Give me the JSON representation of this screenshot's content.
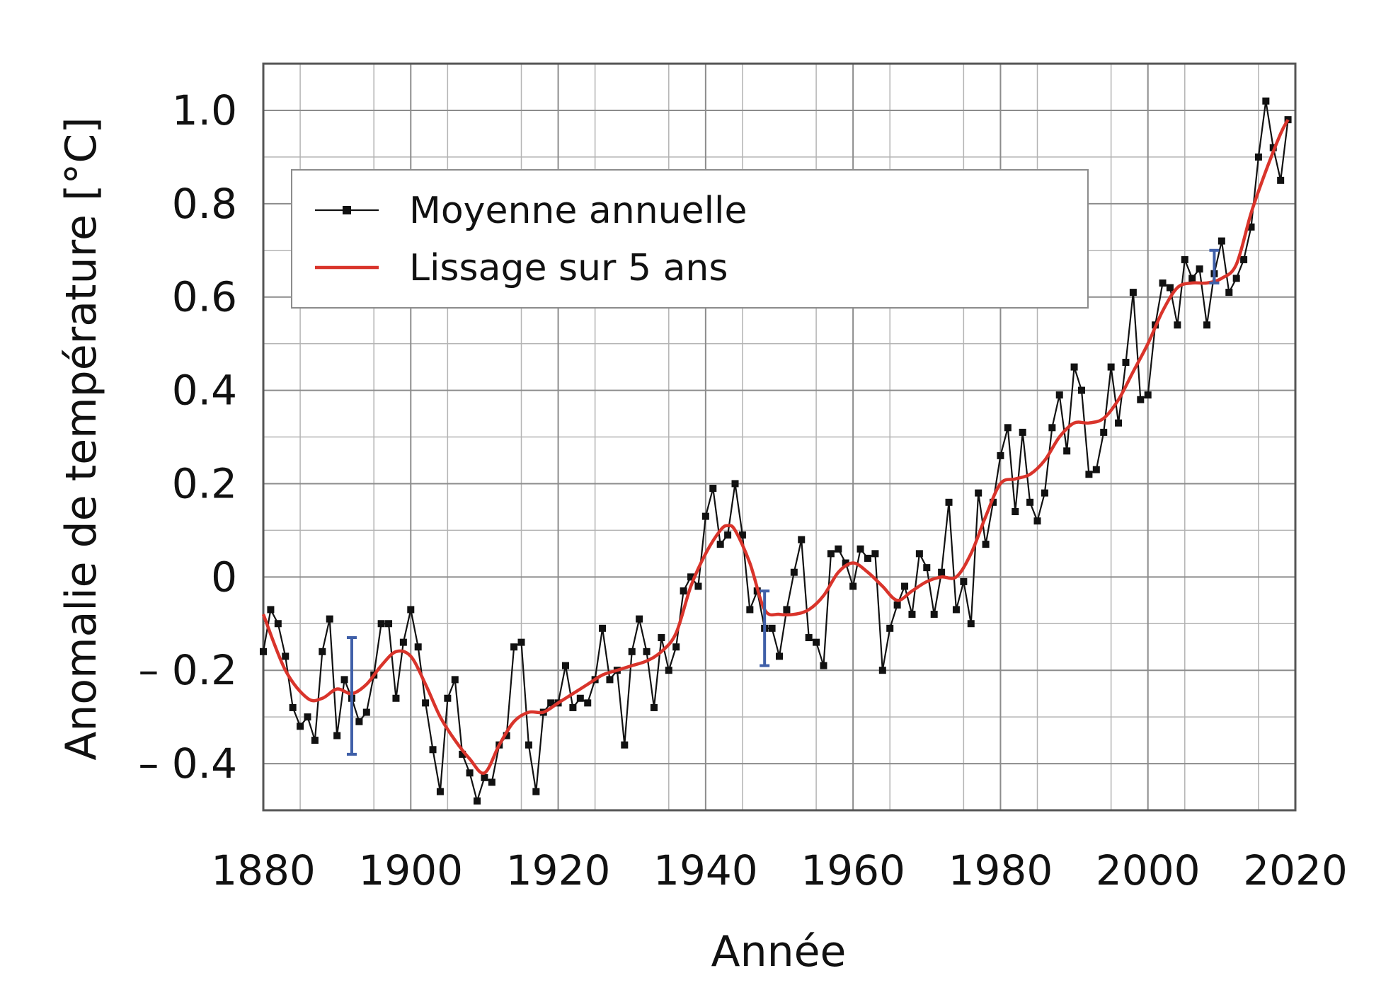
{
  "chart_data": {
    "type": "line",
    "title": "",
    "xlabel": "Année",
    "ylabel": "Anomalie de température [°C]",
    "xlim": [
      1880,
      2020
    ],
    "ylim": [
      -0.5,
      1.1
    ],
    "x_ticks": [
      1880,
      1900,
      1920,
      1940,
      1960,
      1980,
      2000,
      2020
    ],
    "x_tick_labels": [
      "1880",
      "1900",
      "1920",
      "1940",
      "1960",
      "1980",
      "2000",
      "2020"
    ],
    "y_ticks": [
      -0.4,
      -0.2,
      0,
      0.2,
      0.4,
      0.6,
      0.8,
      1.0
    ],
    "y_tick_labels": [
      "– 0.4",
      "– 0.2",
      "0",
      "0.2",
      "0.4",
      "0.6",
      "0.8",
      "1.0"
    ],
    "grid": true,
    "legend_position": "top-left",
    "legend": [
      "Moyenne annuelle",
      "Lissage sur 5 ans"
    ],
    "colors": {
      "annual": "#111111",
      "smooth": "#d9342b",
      "error_bar": "#3f5fa8",
      "grid": "#8c8c8c"
    },
    "series": [
      {
        "name": "Moyenne annuelle",
        "x": [
          1880,
          1881,
          1882,
          1883,
          1884,
          1885,
          1886,
          1887,
          1888,
          1889,
          1890,
          1891,
          1892,
          1893,
          1894,
          1895,
          1896,
          1897,
          1898,
          1899,
          1900,
          1901,
          1902,
          1903,
          1904,
          1905,
          1906,
          1907,
          1908,
          1909,
          1910,
          1911,
          1912,
          1913,
          1914,
          1915,
          1916,
          1917,
          1918,
          1919,
          1920,
          1921,
          1922,
          1923,
          1924,
          1925,
          1926,
          1927,
          1928,
          1929,
          1930,
          1931,
          1932,
          1933,
          1934,
          1935,
          1936,
          1937,
          1938,
          1939,
          1940,
          1941,
          1942,
          1943,
          1944,
          1945,
          1946,
          1947,
          1948,
          1949,
          1950,
          1951,
          1952,
          1953,
          1954,
          1955,
          1956,
          1957,
          1958,
          1959,
          1960,
          1961,
          1962,
          1963,
          1964,
          1965,
          1966,
          1967,
          1968,
          1969,
          1970,
          1971,
          1972,
          1973,
          1974,
          1975,
          1976,
          1977,
          1978,
          1979,
          1980,
          1981,
          1982,
          1983,
          1984,
          1985,
          1986,
          1987,
          1988,
          1989,
          1990,
          1991,
          1992,
          1993,
          1994,
          1995,
          1996,
          1997,
          1998,
          1999,
          2000,
          2001,
          2002,
          2003,
          2004,
          2005,
          2006,
          2007,
          2008,
          2009,
          2010,
          2011,
          2012,
          2013,
          2014,
          2015,
          2016,
          2017,
          2018,
          2019
        ],
        "y": [
          -0.16,
          -0.07,
          -0.1,
          -0.17,
          -0.28,
          -0.32,
          -0.3,
          -0.35,
          -0.16,
          -0.09,
          -0.34,
          -0.22,
          -0.26,
          -0.31,
          -0.29,
          -0.21,
          -0.1,
          -0.1,
          -0.26,
          -0.14,
          -0.07,
          -0.15,
          -0.27,
          -0.37,
          -0.46,
          -0.26,
          -0.22,
          -0.38,
          -0.42,
          -0.48,
          -0.43,
          -0.44,
          -0.36,
          -0.34,
          -0.15,
          -0.14,
          -0.36,
          -0.46,
          -0.29,
          -0.27,
          -0.27,
          -0.19,
          -0.28,
          -0.26,
          -0.27,
          -0.22,
          -0.11,
          -0.22,
          -0.2,
          -0.36,
          -0.16,
          -0.09,
          -0.16,
          -0.28,
          -0.13,
          -0.2,
          -0.15,
          -0.03,
          0.0,
          -0.02,
          0.13,
          0.19,
          0.07,
          0.09,
          0.2,
          0.09,
          -0.07,
          -0.03,
          -0.11,
          -0.11,
          -0.17,
          -0.07,
          0.01,
          0.08,
          -0.13,
          -0.14,
          -0.19,
          0.05,
          0.06,
          0.03,
          -0.02,
          0.06,
          0.04,
          0.05,
          -0.2,
          -0.11,
          -0.06,
          -0.02,
          -0.08,
          0.05,
          0.02,
          -0.08,
          0.01,
          0.16,
          -0.07,
          -0.01,
          -0.1,
          0.18,
          0.07,
          0.16,
          0.26,
          0.32,
          0.14,
          0.31,
          0.16,
          0.12,
          0.18,
          0.32,
          0.39,
          0.27,
          0.45,
          0.4,
          0.22,
          0.23,
          0.31,
          0.45,
          0.33,
          0.46,
          0.61,
          0.38,
          0.39,
          0.54,
          0.63,
          0.62,
          0.54,
          0.68,
          0.64,
          0.66,
          0.54,
          0.65,
          0.72,
          0.61,
          0.64,
          0.68,
          0.75,
          0.9,
          1.02,
          0.92,
          0.85,
          0.98
        ]
      },
      {
        "name": "Lissage sur 5 ans",
        "x": [
          1880,
          1883,
          1886,
          1888,
          1890,
          1892,
          1894,
          1896,
          1898,
          1900,
          1902,
          1904,
          1906,
          1908,
          1910,
          1912,
          1914,
          1916,
          1918,
          1920,
          1922,
          1924,
          1926,
          1928,
          1930,
          1932,
          1934,
          1936,
          1938,
          1940,
          1942,
          1943,
          1944,
          1946,
          1948,
          1950,
          1952,
          1954,
          1956,
          1958,
          1960,
          1962,
          1964,
          1966,
          1968,
          1970,
          1972,
          1974,
          1976,
          1978,
          1980,
          1982,
          1984,
          1986,
          1988,
          1990,
          1992,
          1994,
          1996,
          1998,
          2000,
          2002,
          2004,
          2006,
          2008,
          2010,
          2012,
          2014,
          2016,
          2018,
          2019
        ],
        "y": [
          -0.08,
          -0.2,
          -0.26,
          -0.26,
          -0.24,
          -0.25,
          -0.23,
          -0.19,
          -0.16,
          -0.17,
          -0.23,
          -0.3,
          -0.35,
          -0.39,
          -0.42,
          -0.36,
          -0.31,
          -0.29,
          -0.29,
          -0.27,
          -0.25,
          -0.23,
          -0.21,
          -0.2,
          -0.19,
          -0.18,
          -0.16,
          -0.12,
          -0.02,
          0.05,
          0.1,
          0.11,
          0.1,
          0.03,
          -0.07,
          -0.08,
          -0.08,
          -0.07,
          -0.04,
          0.01,
          0.03,
          0.01,
          -0.02,
          -0.05,
          -0.03,
          -0.01,
          0.0,
          0.0,
          0.05,
          0.13,
          0.2,
          0.21,
          0.22,
          0.25,
          0.3,
          0.33,
          0.33,
          0.34,
          0.38,
          0.44,
          0.5,
          0.57,
          0.62,
          0.63,
          0.63,
          0.64,
          0.67,
          0.78,
          0.87,
          0.95,
          0.98
        ]
      }
    ],
    "error_bars": [
      {
        "x": 1892,
        "low": -0.38,
        "high": -0.13
      },
      {
        "x": 1948,
        "low": -0.19,
        "high": -0.03
      },
      {
        "x": 2009,
        "low": 0.63,
        "high": 0.7
      }
    ]
  }
}
